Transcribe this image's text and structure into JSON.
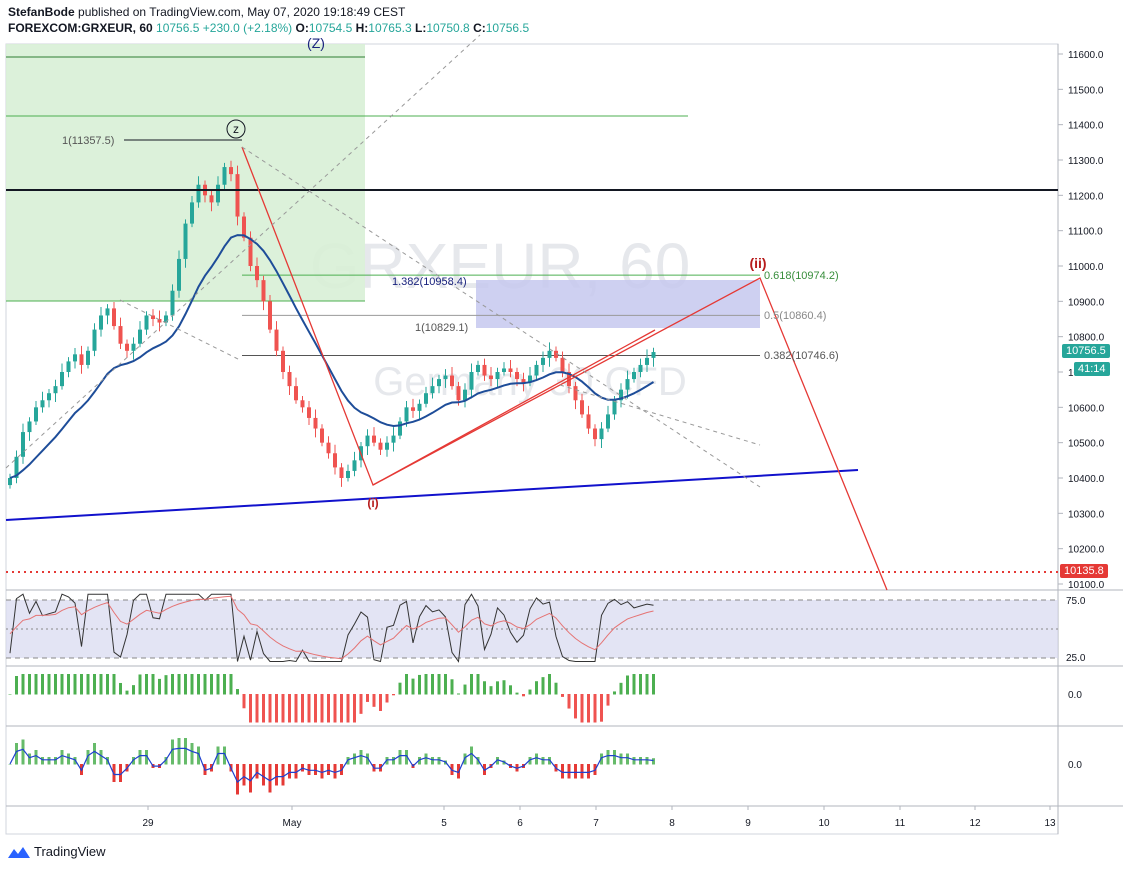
{
  "header": {
    "publisher": "StefanBode",
    "published_text": "published on TradingView.com, May 07, 2020 19:18:49 CEST",
    "symbol": "FOREXCOM:GRXEUR, 60",
    "last": "10756.5",
    "change": "+230.0 (+2.18%)",
    "o_label": "O:",
    "o": "10754.5",
    "h_label": "H:",
    "h": "10765.3",
    "l_label": "L:",
    "l": "10750.8",
    "c_label": "C:",
    "c": "10756.5"
  },
  "watermark": {
    "symbol": "GRXEUR, 60",
    "name": "Germany 30 CFD"
  },
  "price_badge": {
    "value": "10756.5",
    "countdown": "41:14",
    "color": "#26a69a"
  },
  "support_badge": {
    "value": "10135.8",
    "color": "#e53935"
  },
  "annotations": {
    "wave_z": "z",
    "wave_Z": "(Z)",
    "wave_i": "(i)",
    "wave_ii": "(ii)",
    "fib_1_top": "1(11357.5)",
    "fib_1382": "1.382(10958.4)",
    "fib_1": "1(10829.1)",
    "fib_0618": "0.618(10974.2)",
    "fib_05": "0.5(10860.4)",
    "fib_0382": "0.382(10746.6)"
  },
  "rsi": {
    "levels": [
      "75.0",
      "25.0"
    ]
  },
  "osc1": {
    "zero_label": "0.0"
  },
  "osc2": {
    "zero_label": "0.0"
  },
  "footer": {
    "brand": "TradingView"
  },
  "colors": {
    "up": "#26a69a",
    "down": "#ef5350",
    "ma": "#1e4d99",
    "trend": "#1111cc",
    "projection": "#e53935",
    "box": "#c8f0c8",
    "fib_box": "#c5c8ee"
  },
  "chart_data": {
    "type": "candlestick",
    "title": "FOREXCOM:GRXEUR, 60",
    "x_ticks": [
      "29",
      "May",
      "5",
      "6",
      "7",
      "8",
      "9",
      "10",
      "11",
      "12",
      "13"
    ],
    "y_ticks": [
      11600.0,
      11500.0,
      11400.0,
      11300.0,
      11200.0,
      11100.0,
      11000.0,
      10900.0,
      10800.0,
      10700.0,
      10600.0,
      10500.0,
      10400.0,
      10300.0,
      10200.0,
      10100.0
    ],
    "ylim": [
      10080,
      11640
    ],
    "horizontal_levels": [
      11212.0,
      10135.8
    ],
    "close_series": [
      10400,
      10460,
      10530,
      10560,
      10600,
      10620,
      10640,
      10660,
      10700,
      10730,
      10750,
      10720,
      10760,
      10820,
      10860,
      10880,
      10830,
      10780,
      10760,
      10780,
      10820,
      10860,
      10850,
      10840,
      10860,
      10930,
      11020,
      11120,
      11180,
      11230,
      11200,
      11180,
      11230,
      11280,
      11260,
      11140,
      11080,
      11000,
      10960,
      10900,
      10820,
      10760,
      10700,
      10660,
      10620,
      10600,
      10570,
      10540,
      10500,
      10470,
      10430,
      10400,
      10420,
      10450,
      10490,
      10520,
      10500,
      10480,
      10500,
      10520,
      10560,
      10600,
      10590,
      10610,
      10640,
      10660,
      10680,
      10690,
      10660,
      10620,
      10650,
      10700,
      10720,
      10690,
      10680,
      10700,
      10710,
      10700,
      10680,
      10670,
      10690,
      10720,
      10740,
      10760,
      10740,
      10700,
      10660,
      10620,
      10580,
      10540,
      10510,
      10540,
      10580,
      10620,
      10650,
      10680,
      10700,
      10720,
      10740,
      10756.5
    ],
    "fib_levels": [
      {
        "label": "0.618(10974.2)",
        "value": 10974.2
      },
      {
        "label": "0.5(10860.4)",
        "value": 10860.4
      },
      {
        "label": "0.382(10746.6)",
        "value": 10746.6
      }
    ],
    "extension_levels": [
      {
        "label": "1.382(10958.4)",
        "value": 10958.4
      },
      {
        "label": "1(10829.1)",
        "value": 10829.1
      },
      {
        "label": "1(11357.5)",
        "value": 11357.5
      }
    ],
    "rsi_levels": [
      75.0,
      25.0
    ]
  }
}
